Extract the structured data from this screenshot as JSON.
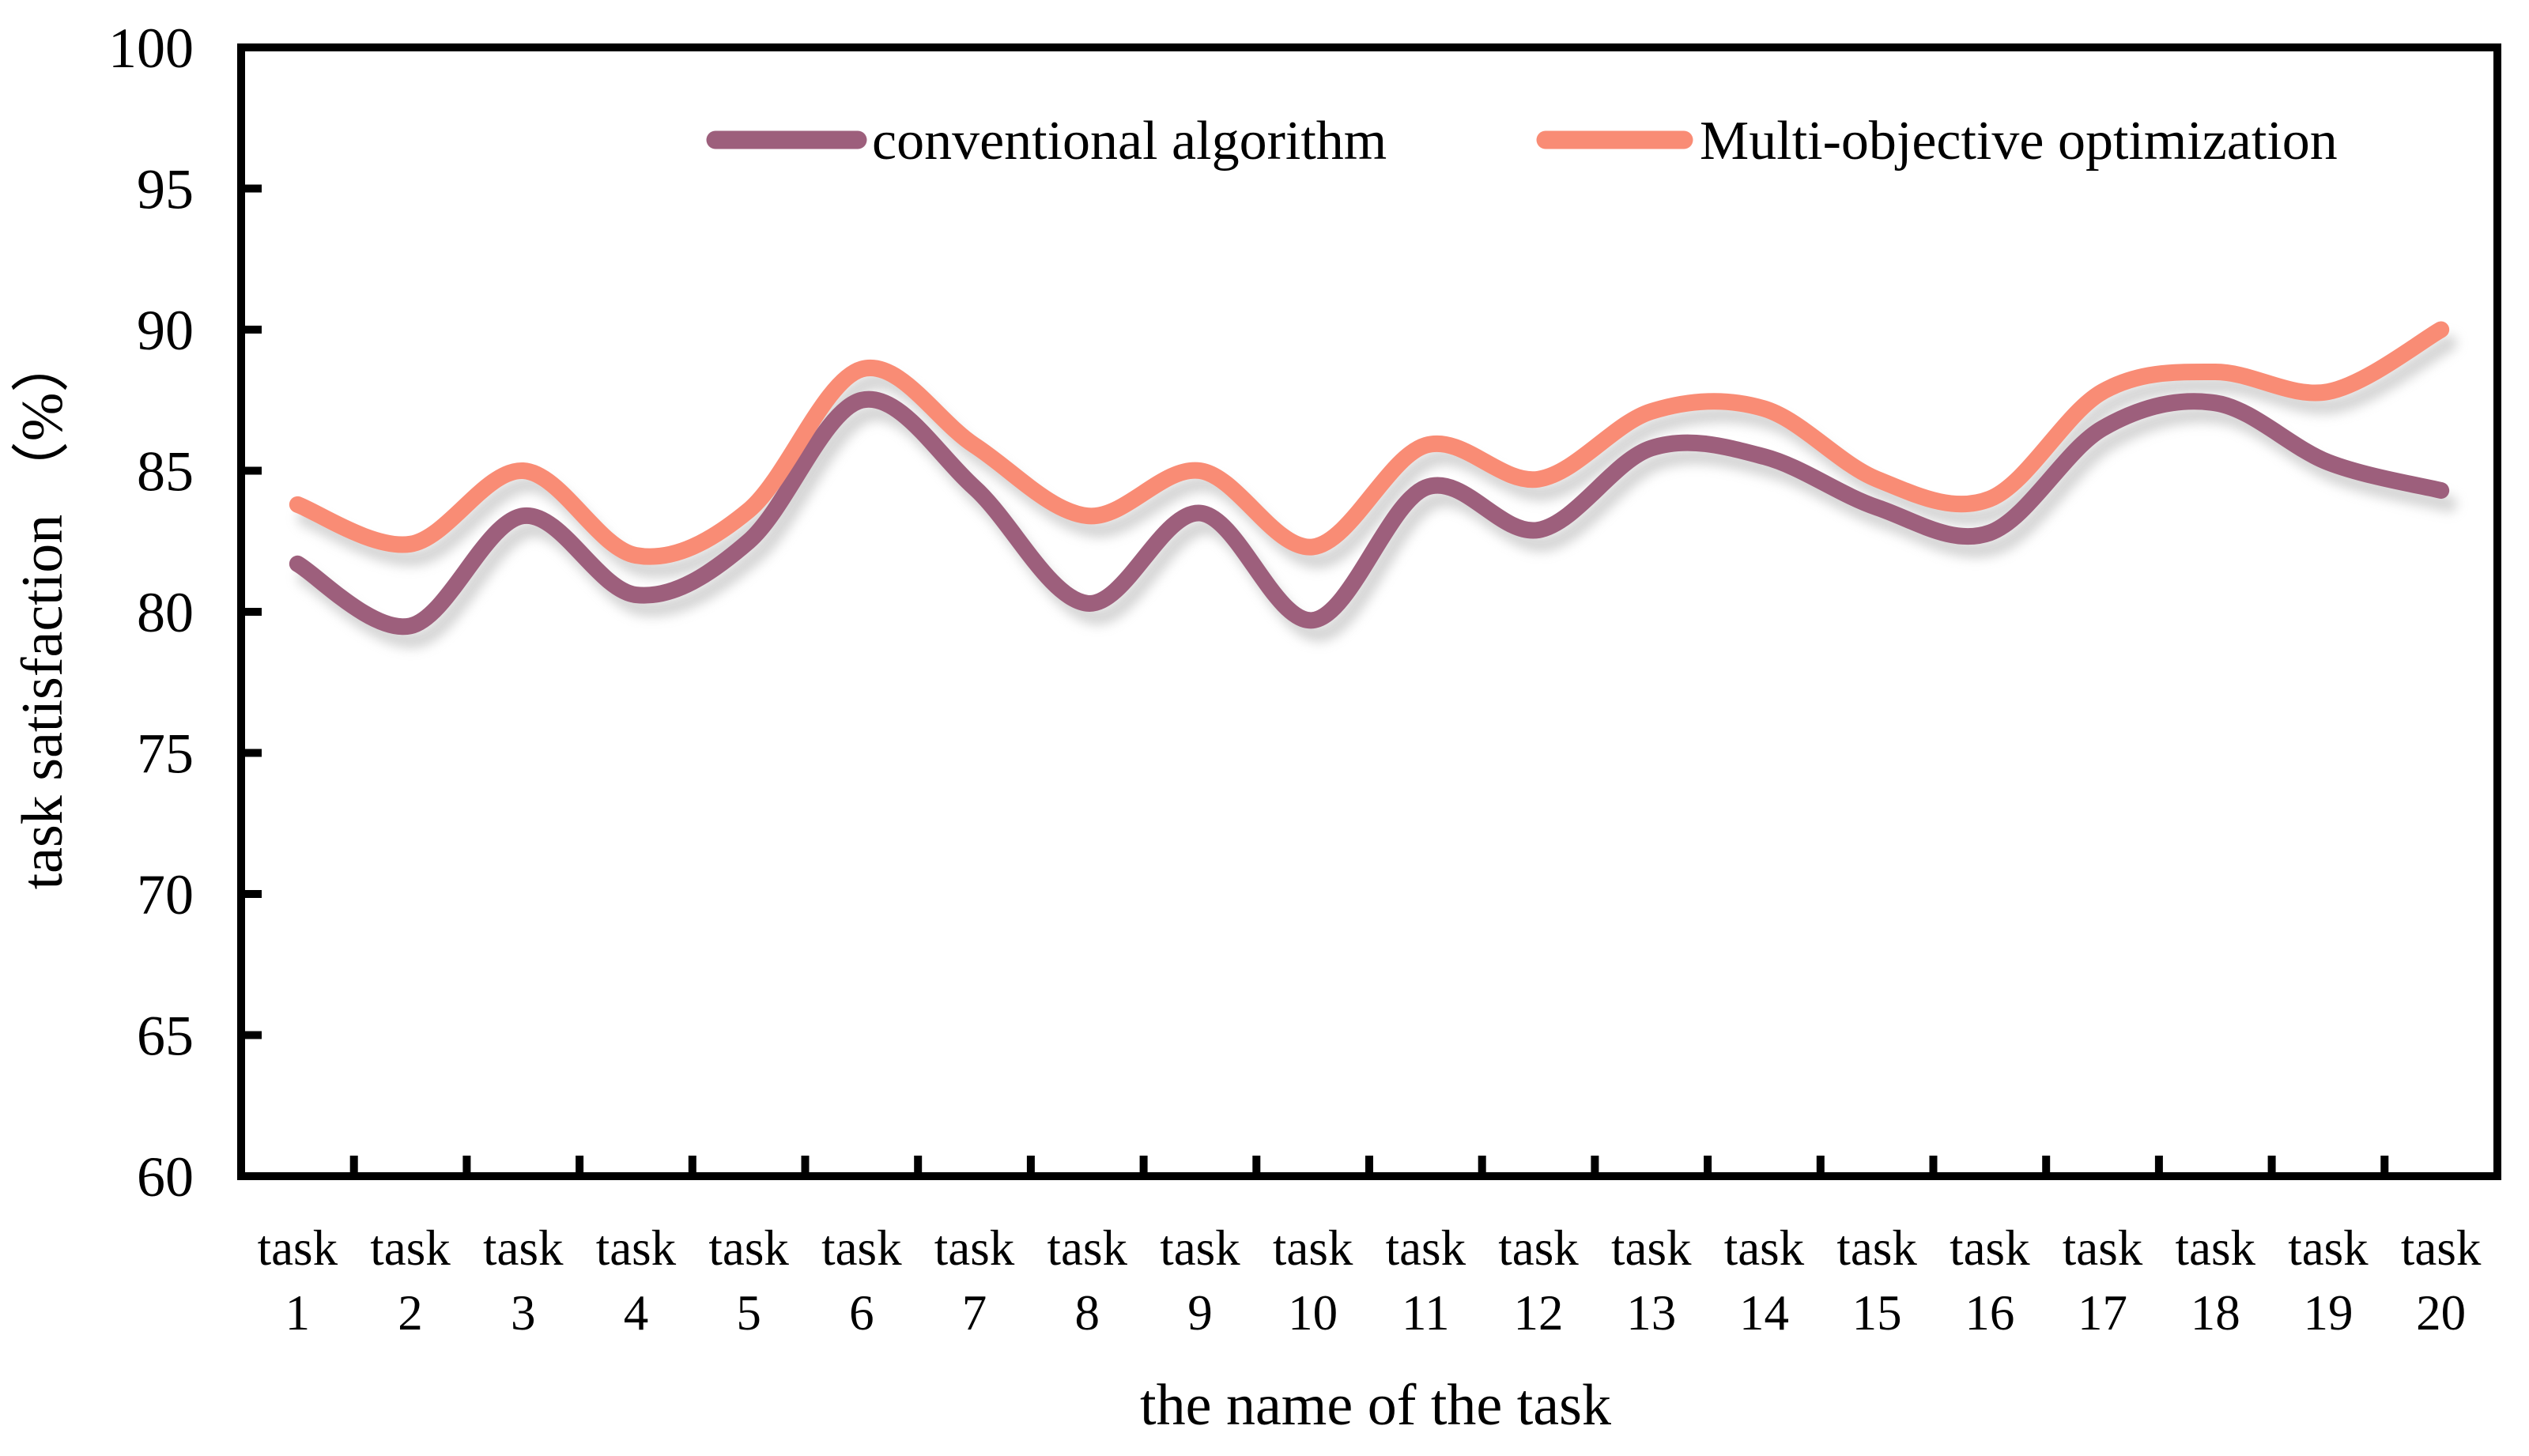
{
  "chart_data": {
    "type": "line",
    "title": "",
    "xlabel": "the name of the task",
    "ylabel": "task satisfaction （%）",
    "categories": [
      "task 1",
      "task 2",
      "task 3",
      "task 4",
      "task 5",
      "task 6",
      "task 7",
      "task 8",
      "task 9",
      "task 10",
      "task 11",
      "task 12",
      "task 13",
      "task 14",
      "task 15",
      "task 16",
      "task 17",
      "task 18",
      "task 19",
      "task 20"
    ],
    "yticks": [
      60,
      65,
      70,
      75,
      80,
      85,
      90,
      95,
      100
    ],
    "ylim": [
      60,
      100
    ],
    "grid": false,
    "smooth": true,
    "legend_position": "top-center",
    "axis_color": "#000000",
    "background_color": "#ffffff",
    "shadow_color": "#b3b3b3",
    "series": [
      {
        "name": "conventional algorithm",
        "color": "#9D5F7C",
        "values": [
          81.7,
          79.5,
          83.4,
          80.6,
          82.5,
          87.5,
          84.4,
          80.3,
          83.5,
          79.7,
          84.4,
          82.9,
          85.8,
          85.5,
          83.7,
          82.8,
          86.5,
          87.4,
          85.3,
          84.3
        ]
      },
      {
        "name": "Multi-objective optimization",
        "color": "#F98C75",
        "values": [
          83.8,
          82.4,
          85.0,
          82.0,
          83.6,
          88.6,
          85.9,
          83.4,
          85.0,
          82.3,
          85.9,
          84.7,
          87.1,
          87.2,
          84.7,
          84.0,
          87.8,
          88.5,
          87.8,
          90.0
        ]
      }
    ]
  }
}
